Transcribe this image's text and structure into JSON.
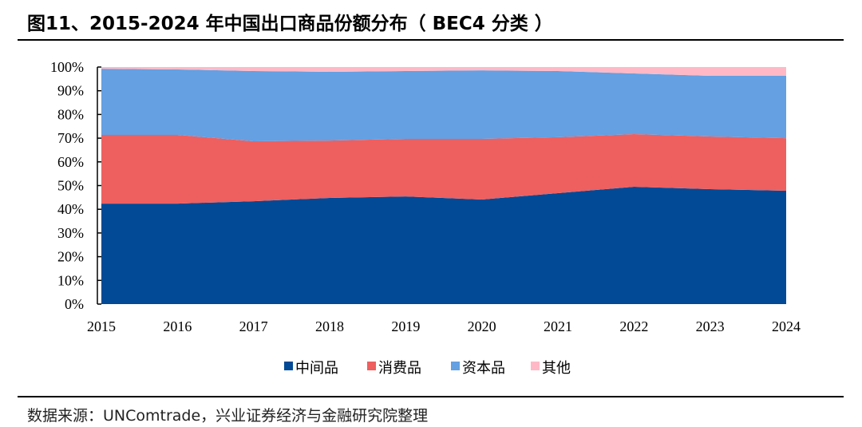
{
  "title": "图11、2015-2024 年中国出口商品份额分布（ BEC4 分类 ）",
  "source": "数据来源：UNComtrade，兴业证券经济与金融研究院整理",
  "chart_data": {
    "type": "area",
    "stacked": true,
    "title": "",
    "xlabel": "",
    "ylabel": "",
    "categories": [
      "2015",
      "2016",
      "2017",
      "2018",
      "2019",
      "2020",
      "2021",
      "2022",
      "2023",
      "2024"
    ],
    "ylim": [
      0,
      100
    ],
    "yticks": [
      "0%",
      "10%",
      "20%",
      "30%",
      "40%",
      "50%",
      "60%",
      "70%",
      "80%",
      "90%",
      "100%"
    ],
    "grid": false,
    "legend": "bottom",
    "series": [
      {
        "name": "中间品",
        "color": "#024A95",
        "values": [
          42.4,
          42.4,
          43.4,
          44.8,
          45.4,
          44.1,
          46.8,
          49.5,
          48.5,
          47.8
        ]
      },
      {
        "name": "消费品",
        "color": "#EE5F5F",
        "values": [
          29.0,
          29.0,
          25.3,
          24.2,
          24.3,
          25.6,
          23.6,
          22.2,
          22.2,
          22.2
        ]
      },
      {
        "name": "资本品",
        "color": "#64A0E2",
        "values": [
          27.9,
          27.6,
          29.6,
          29.0,
          28.6,
          28.9,
          27.9,
          25.6,
          25.6,
          26.3
        ]
      },
      {
        "name": "其他",
        "color": "#FFB9C6",
        "values": [
          0.7,
          1.0,
          1.7,
          2.0,
          1.7,
          1.4,
          1.7,
          2.7,
          3.7,
          3.7
        ]
      }
    ]
  }
}
